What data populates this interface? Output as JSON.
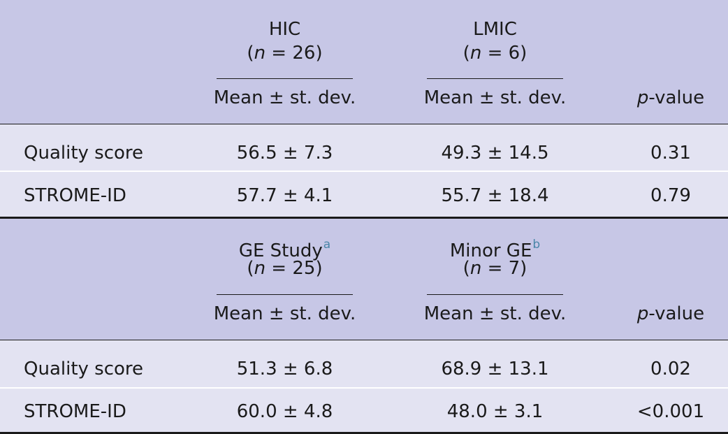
{
  "section1": {
    "group_left": {
      "title": "HIC",
      "n_label": "n",
      "n_value": " = 26)"
    },
    "group_right": {
      "title": "LMIC",
      "n_label": "n",
      "n_value": " = 6)"
    },
    "subheader": {
      "left": "Mean ± st. dev.",
      "right": "Mean ± st. dev.",
      "p_italic": "p",
      "p_rest": "-value"
    },
    "rows": [
      {
        "label": "Quality score",
        "left": "56.5 ± 7.3",
        "right": "49.3 ± 14.5",
        "p": "0.31"
      },
      {
        "label": "STROME-ID",
        "left": "57.7 ± 4.1",
        "right": "55.7 ± 18.4",
        "p": "0.79"
      }
    ]
  },
  "section2": {
    "group_left": {
      "title": "GE Study",
      "sup": "a",
      "n_label": "n",
      "n_value": " = 25)"
    },
    "group_right": {
      "title": "Minor GE",
      "sup": "b",
      "n_label": "n",
      "n_value": " = 7)"
    },
    "subheader": {
      "left": "Mean ± st. dev.",
      "right": "Mean ± st. dev.",
      "p_italic": "p",
      "p_rest": "-value"
    },
    "rows": [
      {
        "label": "Quality score",
        "left": "51.3 ± 6.8",
        "right": "68.9 ± 13.1",
        "p": "0.02"
      },
      {
        "label": "STROME-ID",
        "left": "60.0 ± 4.8",
        "right": "48.0 ± 3.1",
        "p": "<0.001"
      }
    ]
  }
}
